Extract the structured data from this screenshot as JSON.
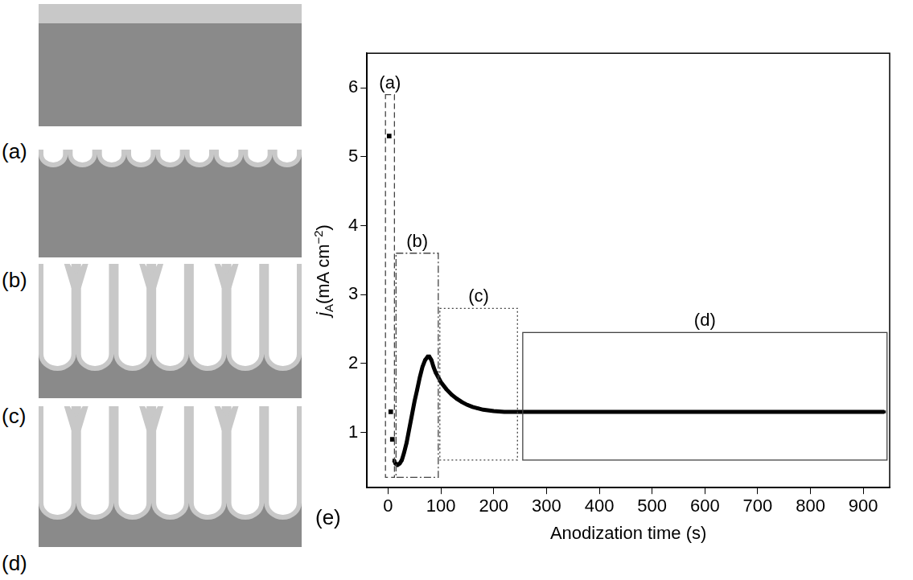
{
  "chart_data": {
    "type": "scatter",
    "panel_label": "(e)",
    "xlabel": "Anodization time (s)",
    "ylabel": [
      {
        "text": "j",
        "style": "italic"
      },
      {
        "text": "A",
        "style": "sub"
      },
      {
        "text": "(mA cm"
      },
      {
        "text": "−2",
        "style": "sup"
      },
      {
        "text": ")"
      }
    ],
    "xlim": [
      -40,
      950
    ],
    "ylim": [
      0.2,
      6.5
    ],
    "xticks": [
      0,
      100,
      200,
      300,
      400,
      500,
      600,
      700,
      800,
      900
    ],
    "yticks": [
      1,
      2,
      3,
      4,
      5,
      6
    ],
    "grid": false,
    "series": [
      {
        "type": "scatter",
        "marker": "square",
        "color": "#000000",
        "x": [
          2,
          5,
          8
        ],
        "values": [
          5.3,
          1.3,
          0.9
        ]
      },
      {
        "type": "line",
        "marker": "square",
        "color": "#000000",
        "x": [
          11,
          14,
          18,
          22,
          26,
          30,
          35,
          40,
          45,
          50,
          55,
          60,
          65,
          70,
          75,
          78,
          82,
          86,
          90,
          95,
          100,
          110,
          120,
          130,
          140,
          150,
          160,
          170,
          180,
          200,
          220,
          240,
          260,
          280,
          300,
          320,
          340,
          360,
          380,
          400,
          420,
          440,
          460,
          480,
          500,
          520,
          540,
          560,
          580,
          600,
          620,
          640,
          660,
          680,
          700,
          720,
          740,
          760,
          780,
          800,
          820,
          840,
          860,
          880,
          900,
          920,
          940
        ],
        "values": [
          0.6,
          0.55,
          0.53,
          0.55,
          0.6,
          0.7,
          0.85,
          1.05,
          1.25,
          1.45,
          1.62,
          1.8,
          1.95,
          2.05,
          2.1,
          2.1,
          2.05,
          1.95,
          1.87,
          1.8,
          1.73,
          1.63,
          1.55,
          1.49,
          1.44,
          1.4,
          1.37,
          1.35,
          1.33,
          1.31,
          1.3,
          1.3,
          1.3,
          1.3,
          1.3,
          1.3,
          1.3,
          1.3,
          1.3,
          1.3,
          1.3,
          1.3,
          1.3,
          1.3,
          1.3,
          1.3,
          1.3,
          1.3,
          1.3,
          1.3,
          1.3,
          1.3,
          1.3,
          1.3,
          1.3,
          1.3,
          1.3,
          1.3,
          1.3,
          1.3,
          1.3,
          1.3,
          1.3,
          1.3,
          1.3,
          1.3,
          1.3
        ]
      }
    ],
    "regions": [
      {
        "label": "(a)",
        "x": [
          -5,
          12
        ],
        "y": [
          0.35,
          5.9
        ],
        "line_style": "dashed"
      },
      {
        "label": "(b)",
        "x": [
          15,
          95
        ],
        "y": [
          0.35,
          3.6
        ],
        "line_style": "dashdot"
      },
      {
        "label": "(c)",
        "x": [
          98,
          245
        ],
        "y": [
          0.6,
          2.8
        ],
        "line_style": "dotted"
      },
      {
        "label": "(d)",
        "x": [
          255,
          945
        ],
        "y": [
          0.6,
          2.45
        ],
        "line_style": "solid"
      }
    ]
  },
  "diagram": {
    "panels": [
      {
        "label": "(a)"
      },
      {
        "label": "(b)"
      },
      {
        "label": "(c)"
      },
      {
        "label": "(d)"
      }
    ]
  }
}
